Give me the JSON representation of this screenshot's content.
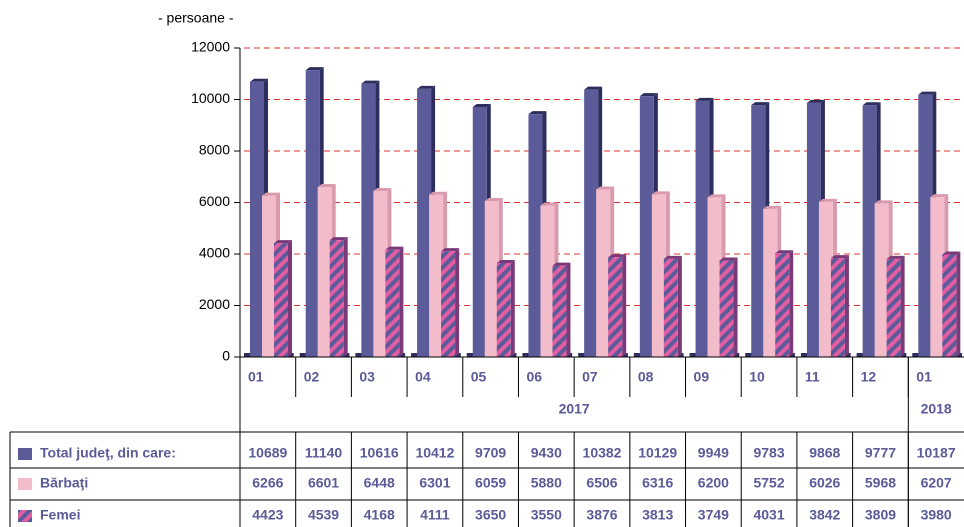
{
  "chart_data": {
    "type": "bar",
    "subtitle": "- persoane -",
    "categories": [
      "01",
      "02",
      "03",
      "04",
      "05",
      "06",
      "07",
      "08",
      "09",
      "10",
      "11",
      "12",
      "01"
    ],
    "category_groups": [
      {
        "name": "2017",
        "count": 12
      },
      {
        "name": "2018",
        "count": 1
      }
    ],
    "series": [
      {
        "name": "Total judeţ, din care:",
        "color": "#5b5b99",
        "values": [
          10689,
          11140,
          10616,
          10412,
          9709,
          9430,
          10382,
          10129,
          9949,
          9783,
          9868,
          9777,
          10187
        ]
      },
      {
        "name": "Bărbaţi",
        "color": "#f2bccb",
        "values": [
          6266,
          6601,
          6448,
          6301,
          6059,
          5880,
          6506,
          6316,
          6200,
          5752,
          6026,
          5968,
          6207
        ]
      },
      {
        "name": "Femei",
        "color": "#e35da3",
        "values": [
          4423,
          4539,
          4168,
          4111,
          3650,
          3550,
          3876,
          3813,
          3749,
          4031,
          3842,
          3809,
          3980
        ]
      }
    ],
    "ylim": [
      0,
      12000
    ],
    "yticks": [
      0,
      2000,
      4000,
      6000,
      8000,
      10000,
      12000
    ],
    "grid": true
  }
}
